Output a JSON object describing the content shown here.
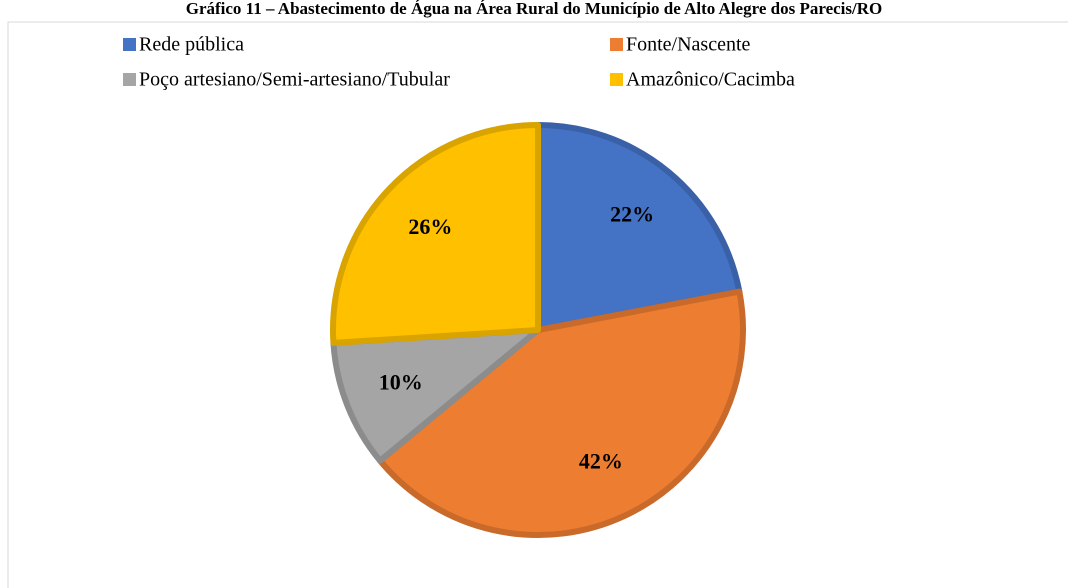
{
  "chart_data": {
    "type": "pie",
    "title": "Gráfico 11 – Abastecimento de Água na Área Rural do Município de Alto Alegre dos Parecis/RO",
    "categories": [
      "Rede pública",
      "Fonte/Nascente",
      "Poço artesiano/Semi-artesiano/Tubular",
      "Amazônico/Cacimba"
    ],
    "values": [
      22,
      42,
      10,
      26
    ],
    "value_labels": [
      "22%",
      "42%",
      "10%",
      "26%"
    ],
    "colors": [
      "#4472c4",
      "#ed7d31",
      "#a5a5a5",
      "#ffc000"
    ],
    "legend": "top"
  }
}
